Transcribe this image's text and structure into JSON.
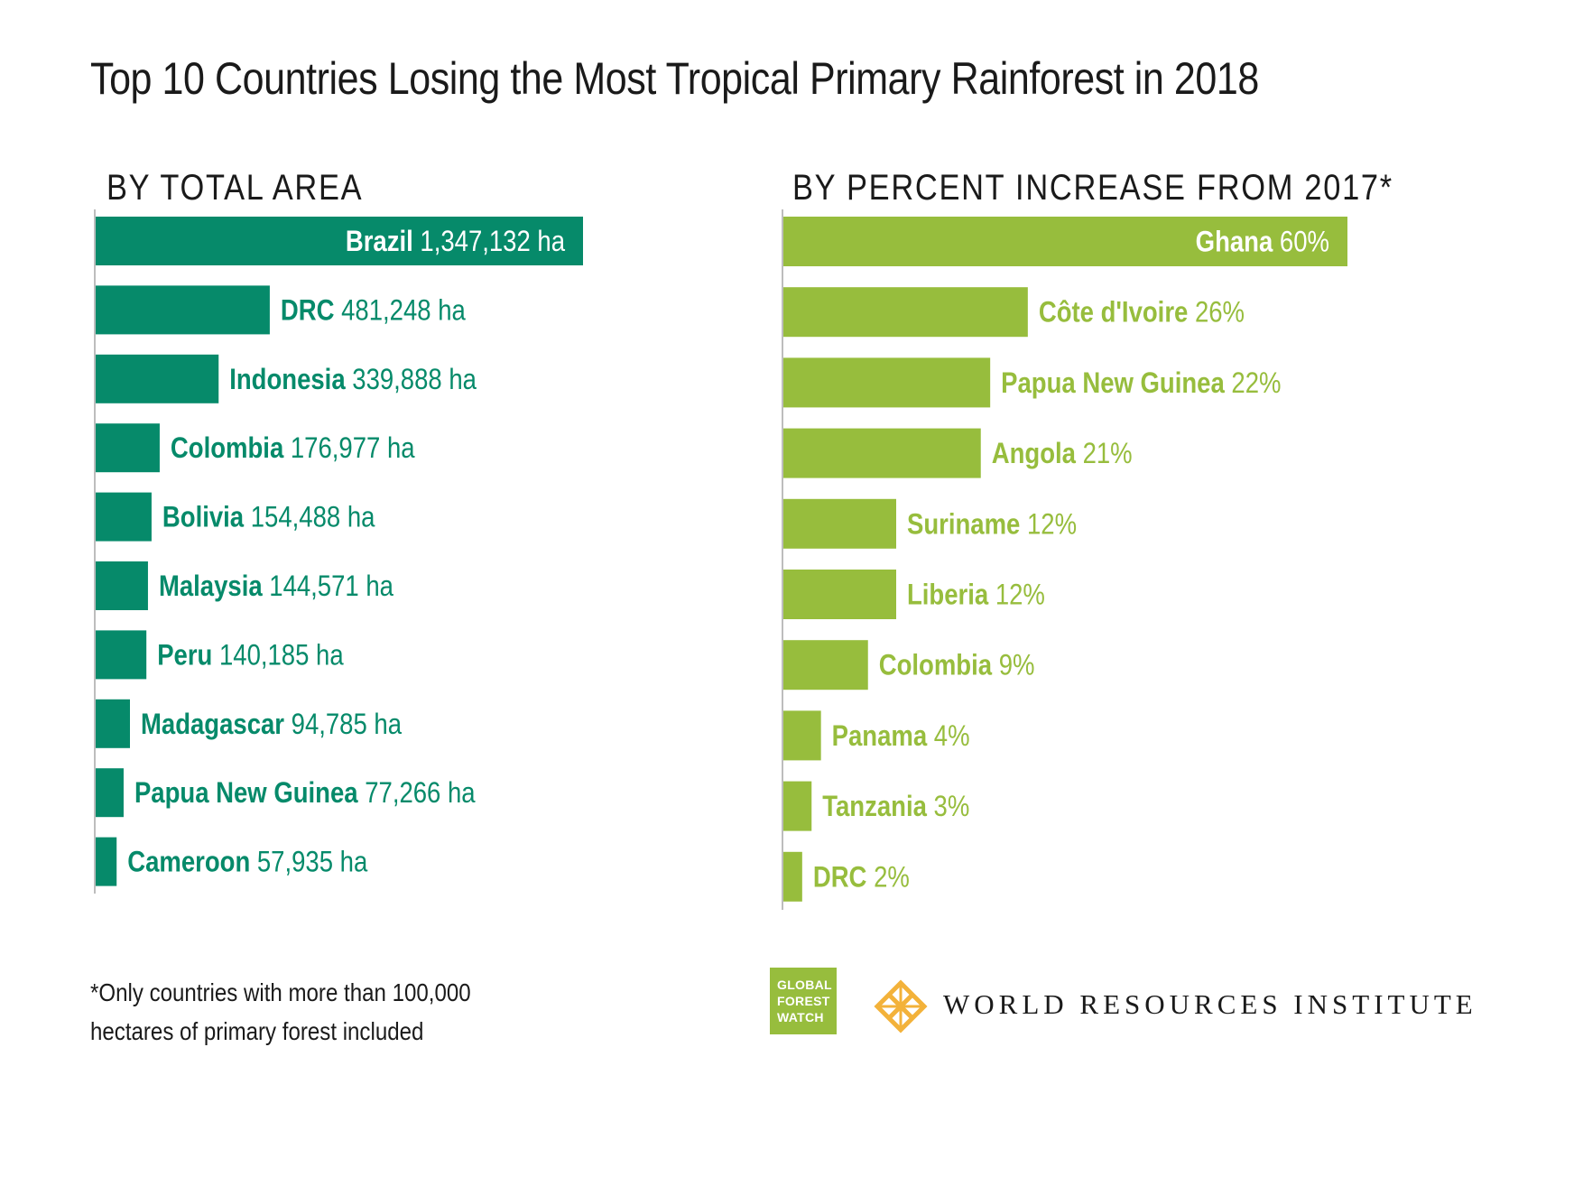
{
  "title": "Top 10 Countries Losing the Most Tropical Primary Rainforest in 2018",
  "colors": {
    "left_bar": "#068a6a",
    "right_bar": "#97bd3d",
    "axis": "#bdbdbd"
  },
  "chart_data": [
    {
      "type": "bar",
      "orientation": "horizontal",
      "title": "BY TOTAL AREA",
      "categories": [
        "Brazil",
        "DRC",
        "Indonesia",
        "Colombia",
        "Bolivia",
        "Malaysia",
        "Peru",
        "Madagascar",
        "Papua New Guinea",
        "Cameroon"
      ],
      "values": [
        1347132,
        481248,
        339888,
        176977,
        154488,
        144571,
        140185,
        94785,
        77266,
        57935
      ],
      "value_labels": [
        "1,347,132 ha",
        "481,248 ha",
        "339,888 ha",
        "176,977 ha",
        "154,488 ha",
        "144,571 ha",
        "140,185 ha",
        "94,785 ha",
        "77,266 ha",
        "57,935 ha"
      ],
      "unit": "ha",
      "color": "#068a6a"
    },
    {
      "type": "bar",
      "orientation": "horizontal",
      "title": "BY PERCENT INCREASE FROM 2017*",
      "categories": [
        "Ghana",
        "Côte d'Ivoire",
        "Papua New Guinea",
        "Angola",
        "Suriname",
        "Liberia",
        "Colombia",
        "Panama",
        "Tanzania",
        "DRC"
      ],
      "values": [
        60,
        26,
        22,
        21,
        12,
        12,
        9,
        4,
        3,
        2
      ],
      "value_labels": [
        "60%",
        "26%",
        "22%",
        "21%",
        "12%",
        "12%",
        "9%",
        "4%",
        "3%",
        "2%"
      ],
      "unit": "%",
      "color": "#97bd3d"
    }
  ],
  "footnote": {
    "line1": "*Only countries with more than 100,000",
    "line2": "hectares of primary forest included"
  },
  "logos": {
    "gfw": {
      "line1": "GLOBAL",
      "line2": "FOREST",
      "line3": "WATCH",
      "icon": "global-forest-watch-logo"
    },
    "wri": {
      "text": "WORLD RESOURCES INSTITUTE",
      "icon": "wri-lattice-icon"
    }
  }
}
